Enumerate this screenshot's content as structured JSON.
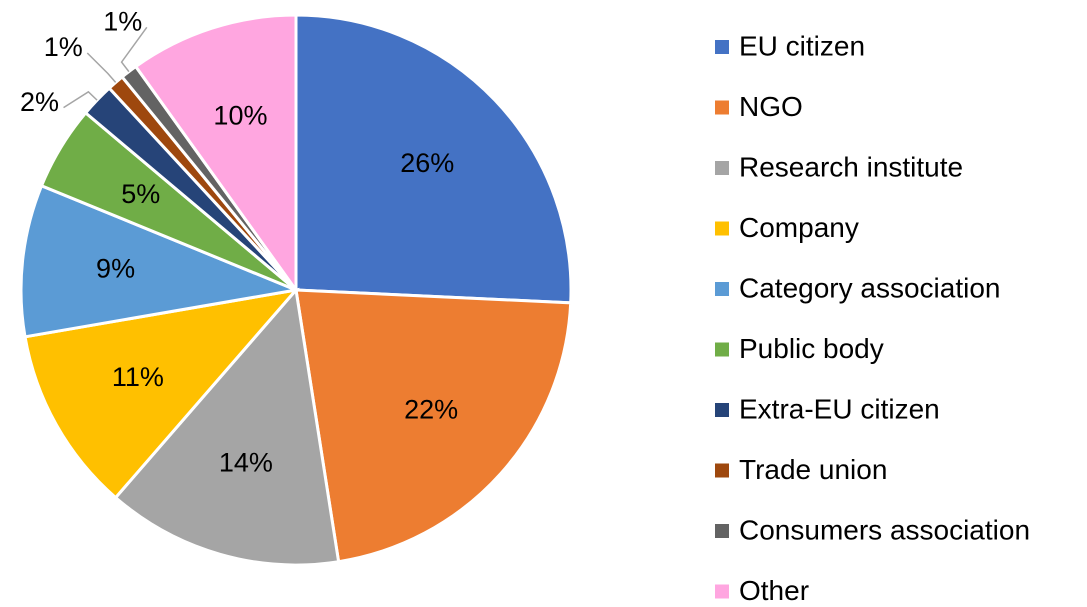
{
  "chart_data": {
    "type": "pie",
    "categories": [
      "EU citizen",
      "NGO",
      "Research institute",
      "Company",
      "Category association",
      "Public body",
      "Extra-EU citizen",
      "Trade union",
      "Consumers association",
      "Other"
    ],
    "values": [
      26,
      22,
      14,
      11,
      9,
      5,
      2,
      1,
      1,
      10
    ],
    "value_labels": [
      "26%",
      "22%",
      "14%",
      "11%",
      "9%",
      "5%",
      "2%",
      "1%",
      "1%",
      "10%"
    ],
    "colors": [
      "#4472c4",
      "#ed7d31",
      "#a5a5a5",
      "#ffc000",
      "#5b9bd5",
      "#70ad47",
      "#264478",
      "#9e480e",
      "#636363",
      "#ffa6e0"
    ],
    "legend": "right"
  }
}
